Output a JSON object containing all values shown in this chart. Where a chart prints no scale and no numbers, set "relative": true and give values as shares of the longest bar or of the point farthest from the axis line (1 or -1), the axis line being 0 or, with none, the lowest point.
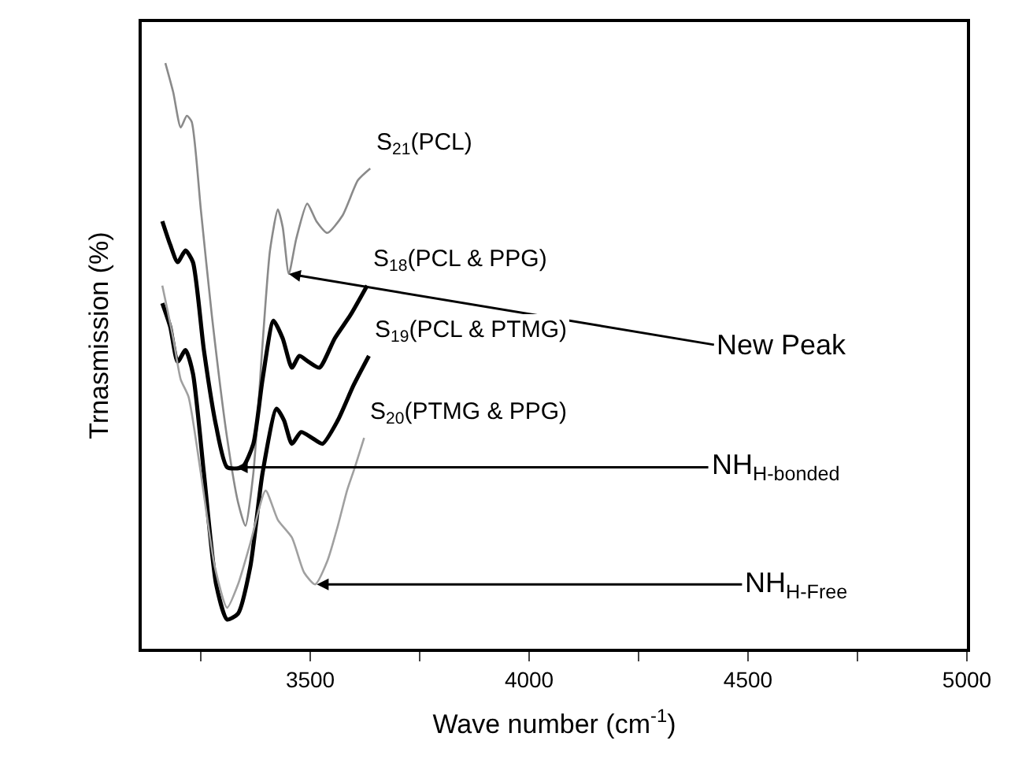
{
  "chart_data": {
    "type": "line",
    "relative": true,
    "xlabel": "Wave number (cm$^{-1}$)",
    "ylabel": "Trnasmission (%)",
    "xlim": [
      3115,
      5000
    ],
    "xticks": [
      {
        "value": 3250,
        "label": null
      },
      3500,
      {
        "value": 3750,
        "label": null
      },
      4000,
      {
        "value": 4250,
        "label": null
      },
      4500,
      {
        "value": 4750,
        "label": null
      },
      5000
    ],
    "legend": false,
    "marker": "none",
    "line_style": "solid",
    "tick_labels": "x",
    "series": [
      {
        "name": "S$_{21}$(PCL)",
        "color": "#8a8a8a",
        "x": [
          3169,
          3187,
          3204,
          3218,
          3229,
          3250,
          3275,
          3310,
          3335,
          3352,
          3370,
          3391,
          3408,
          3426,
          3437,
          3451,
          3468,
          3493,
          3514,
          3539,
          3574,
          3609,
          3637
        ],
        "values": [
          1.0,
          0.95,
          0.89,
          0.91,
          0.9,
          0.75,
          0.57,
          0.36,
          0.25,
          0.21,
          0.3,
          0.52,
          0.68,
          0.75,
          0.72,
          0.64,
          0.7,
          0.76,
          0.73,
          0.71,
          0.74,
          0.8,
          0.82
        ]
      },
      {
        "name": "S$_{18}$(PCL & PPG)",
        "color": "#000000",
        "x": [
          3162,
          3180,
          3197,
          3215,
          3232,
          3257,
          3285,
          3310,
          3345,
          3370,
          3391,
          3416,
          3437,
          3458,
          3475,
          3496,
          3521,
          3556,
          3592,
          3630
        ],
        "values": [
          0.73,
          0.69,
          0.66,
          0.68,
          0.66,
          0.51,
          0.38,
          0.31,
          0.31,
          0.35,
          0.46,
          0.56,
          0.53,
          0.48,
          0.5,
          0.49,
          0.48,
          0.53,
          0.57,
          0.62
        ]
      },
      {
        "name": "S$_{19}$(PCL & PTMG)",
        "color": "#000000",
        "x": [
          3162,
          3180,
          3197,
          3215,
          3232,
          3257,
          3285,
          3310,
          3335,
          3363,
          3391,
          3423,
          3440,
          3458,
          3479,
          3504,
          3528,
          3563,
          3599,
          3634
        ],
        "values": [
          0.59,
          0.55,
          0.49,
          0.51,
          0.47,
          0.3,
          0.11,
          0.05,
          0.06,
          0.14,
          0.3,
          0.41,
          0.39,
          0.35,
          0.37,
          0.36,
          0.35,
          0.39,
          0.45,
          0.5
        ]
      },
      {
        "name": "S$_{20}$(PTMG & PPG)",
        "color": "#a0a0a0",
        "x": [
          3162,
          3187,
          3204,
          3222,
          3250,
          3282,
          3310,
          3335,
          3363,
          3398,
          3426,
          3458,
          3486,
          3511,
          3539,
          3563,
          3584,
          3602,
          3623
        ],
        "values": [
          0.62,
          0.53,
          0.46,
          0.43,
          0.3,
          0.14,
          0.07,
          0.11,
          0.18,
          0.27,
          0.22,
          0.19,
          0.13,
          0.11,
          0.15,
          0.21,
          0.27,
          0.31,
          0.36
        ]
      }
    ],
    "annotations": [
      {
        "text": "New Peak",
        "x": 3451,
        "y": 0.64
      },
      {
        "text": "NH$_{H-bonded}$",
        "x": 3330,
        "y": 0.31
      },
      {
        "text": "NH$_{H-Free}$",
        "x": 3515,
        "y": 0.11
      }
    ]
  }
}
